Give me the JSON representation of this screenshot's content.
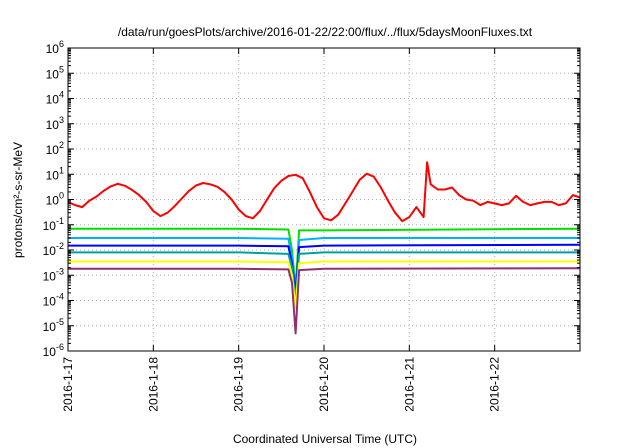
{
  "chart_data": {
    "type": "line",
    "title": "/data/run/goesPlots/archive/2016-01-22/22:00/flux/../flux/5daysMoonFluxes.txt",
    "xlabel": "Coordinated Universal Time (UTC)",
    "ylabel": "protons/cm²-s-sr-MeV",
    "yscale": "log",
    "ylim": [
      1e-06,
      1000000.0
    ],
    "xlim": [
      "2016-01-17T00:00",
      "2016-01-23T00:00"
    ],
    "grid": true,
    "xticks": [
      "2016-1-17",
      "2016-1-18",
      "2016-1-19",
      "2016-1-20",
      "2016-1-21",
      "2016-1-22"
    ],
    "yticks": [
      {
        "mant": "10",
        "exp": "-6"
      },
      {
        "mant": "10",
        "exp": "-5"
      },
      {
        "mant": "10",
        "exp": "-4"
      },
      {
        "mant": "10",
        "exp": "-3"
      },
      {
        "mant": "10",
        "exp": "-2"
      },
      {
        "mant": "10",
        "exp": "-1"
      },
      {
        "mant": "10",
        "exp": "0"
      },
      {
        "mant": "10",
        "exp": "1"
      },
      {
        "mant": "10",
        "exp": "2"
      },
      {
        "mant": "10",
        "exp": "3"
      },
      {
        "mant": "10",
        "exp": "4"
      },
      {
        "mant": "10",
        "exp": "5"
      },
      {
        "mant": "10",
        "exp": "6"
      }
    ],
    "series": [
      {
        "color": "#ff0000",
        "x": [
          "2016-01-17T00:00",
          "2016-01-17T02:00",
          "2016-01-17T04:00",
          "2016-01-17T06:00",
          "2016-01-17T08:00",
          "2016-01-17T10:00",
          "2016-01-17T12:00",
          "2016-01-17T14:00",
          "2016-01-17T16:00",
          "2016-01-17T18:00",
          "2016-01-17T20:00",
          "2016-01-17T22:00",
          "2016-01-18T00:00",
          "2016-01-18T02:00",
          "2016-01-18T04:00",
          "2016-01-18T06:00",
          "2016-01-18T08:00",
          "2016-01-18T10:00",
          "2016-01-18T12:00",
          "2016-01-18T14:00",
          "2016-01-18T16:00",
          "2016-01-18T18:00",
          "2016-01-18T20:00",
          "2016-01-18T22:00",
          "2016-01-19T00:00",
          "2016-01-19T02:00",
          "2016-01-19T04:00",
          "2016-01-19T06:00",
          "2016-01-19T08:00",
          "2016-01-19T10:00",
          "2016-01-19T12:00",
          "2016-01-19T14:00",
          "2016-01-19T16:00",
          "2016-01-19T18:00",
          "2016-01-19T20:00",
          "2016-01-19T22:00",
          "2016-01-20T00:00",
          "2016-01-20T02:00",
          "2016-01-20T04:00",
          "2016-01-20T06:00",
          "2016-01-20T08:00",
          "2016-01-20T10:00",
          "2016-01-20T12:00",
          "2016-01-20T14:00",
          "2016-01-20T16:00",
          "2016-01-20T18:00",
          "2016-01-20T20:00",
          "2016-01-20T22:00",
          "2016-01-21T00:00",
          "2016-01-21T02:00",
          "2016-01-21T04:00",
          "2016-01-21T05:00",
          "2016-01-21T06:00",
          "2016-01-21T08:00",
          "2016-01-21T10:00",
          "2016-01-21T12:00",
          "2016-01-21T14:00",
          "2016-01-21T16:00",
          "2016-01-21T18:00",
          "2016-01-21T20:00",
          "2016-01-21T22:00",
          "2016-01-22T00:00",
          "2016-01-22T02:00",
          "2016-01-22T04:00",
          "2016-01-22T06:00",
          "2016-01-22T08:00",
          "2016-01-22T10:00",
          "2016-01-22T12:00",
          "2016-01-22T14:00",
          "2016-01-22T16:00",
          "2016-01-22T18:00",
          "2016-01-22T20:00",
          "2016-01-22T22:00",
          "2016-01-23T00:00"
        ],
        "values": [
          0.8,
          0.6,
          0.5,
          0.9,
          1.3,
          2.2,
          3.3,
          4.2,
          3.5,
          2.4,
          1.5,
          0.8,
          0.35,
          0.22,
          0.3,
          0.55,
          1.1,
          2.2,
          3.6,
          4.5,
          4.0,
          3.2,
          2.0,
          1.0,
          0.4,
          0.22,
          0.18,
          0.35,
          1.0,
          2.8,
          5.5,
          8.5,
          9.5,
          7.0,
          2.0,
          0.5,
          0.18,
          0.15,
          0.25,
          0.7,
          2.0,
          6.0,
          10.5,
          8.0,
          3.0,
          0.9,
          0.3,
          0.14,
          0.2,
          0.5,
          0.2,
          30,
          4.0,
          2.5,
          2.5,
          3.0,
          1.5,
          1.0,
          0.9,
          0.6,
          0.8,
          0.7,
          0.6,
          0.7,
          1.4,
          0.8,
          0.6,
          0.7,
          0.8,
          0.8,
          0.6,
          0.7,
          1.5,
          1.2
        ]
      },
      {
        "color": "#00e000",
        "x": [
          "2016-01-17T00:00",
          "2016-01-19T00:00",
          "2016-01-19T14:00",
          "2016-01-19T15:00",
          "2016-01-19T16:00",
          "2016-01-19T17:00",
          "2016-01-20T00:00",
          "2016-01-23T00:00"
        ],
        "values": [
          0.07,
          0.07,
          0.065,
          0.01,
          0.0003,
          0.06,
          0.06,
          0.07
        ]
      },
      {
        "color": "#00b0ff",
        "x": [
          "2016-01-17T00:00",
          "2016-01-19T00:00",
          "2016-01-19T14:00",
          "2016-01-19T15:00",
          "2016-01-19T16:00",
          "2016-01-19T17:00",
          "2016-01-20T00:00",
          "2016-01-23T00:00"
        ],
        "values": [
          0.03,
          0.03,
          0.028,
          0.005,
          0.0002,
          0.025,
          0.03,
          0.03
        ]
      },
      {
        "color": "#0000ff",
        "x": [
          "2016-01-17T00:00",
          "2016-01-19T00:00",
          "2016-01-19T14:00",
          "2016-01-19T15:00",
          "2016-01-19T16:00",
          "2016-01-19T17:00",
          "2016-01-20T00:00",
          "2016-01-23T00:00"
        ],
        "values": [
          0.015,
          0.015,
          0.014,
          0.003,
          0.0002,
          0.013,
          0.015,
          0.016
        ]
      },
      {
        "color": "#00a0a0",
        "x": [
          "2016-01-17T00:00",
          "2016-01-19T00:00",
          "2016-01-19T14:00",
          "2016-01-19T15:00",
          "2016-01-19T16:00",
          "2016-01-19T17:00",
          "2016-01-20T00:00",
          "2016-01-23T00:00"
        ],
        "values": [
          0.008,
          0.008,
          0.007,
          0.002,
          0.0001,
          0.007,
          0.008,
          0.008
        ]
      },
      {
        "color": "#ffff00",
        "x": [
          "2016-01-17T00:00",
          "2016-01-19T00:00",
          "2016-01-19T14:00",
          "2016-01-19T15:00",
          "2016-01-19T16:00",
          "2016-01-19T17:00",
          "2016-01-20T00:00",
          "2016-01-23T00:00"
        ],
        "values": [
          0.0035,
          0.0035,
          0.0033,
          0.001,
          5e-05,
          0.003,
          0.0035,
          0.0035
        ]
      },
      {
        "color": "#903070",
        "x": [
          "2016-01-17T00:00",
          "2016-01-19T00:00",
          "2016-01-19T14:00",
          "2016-01-19T15:00",
          "2016-01-19T16:00",
          "2016-01-19T17:00",
          "2016-01-20T00:00",
          "2016-01-23T00:00"
        ],
        "values": [
          0.0018,
          0.0018,
          0.0017,
          0.0005,
          5e-06,
          0.0016,
          0.0018,
          0.0019
        ]
      }
    ]
  }
}
